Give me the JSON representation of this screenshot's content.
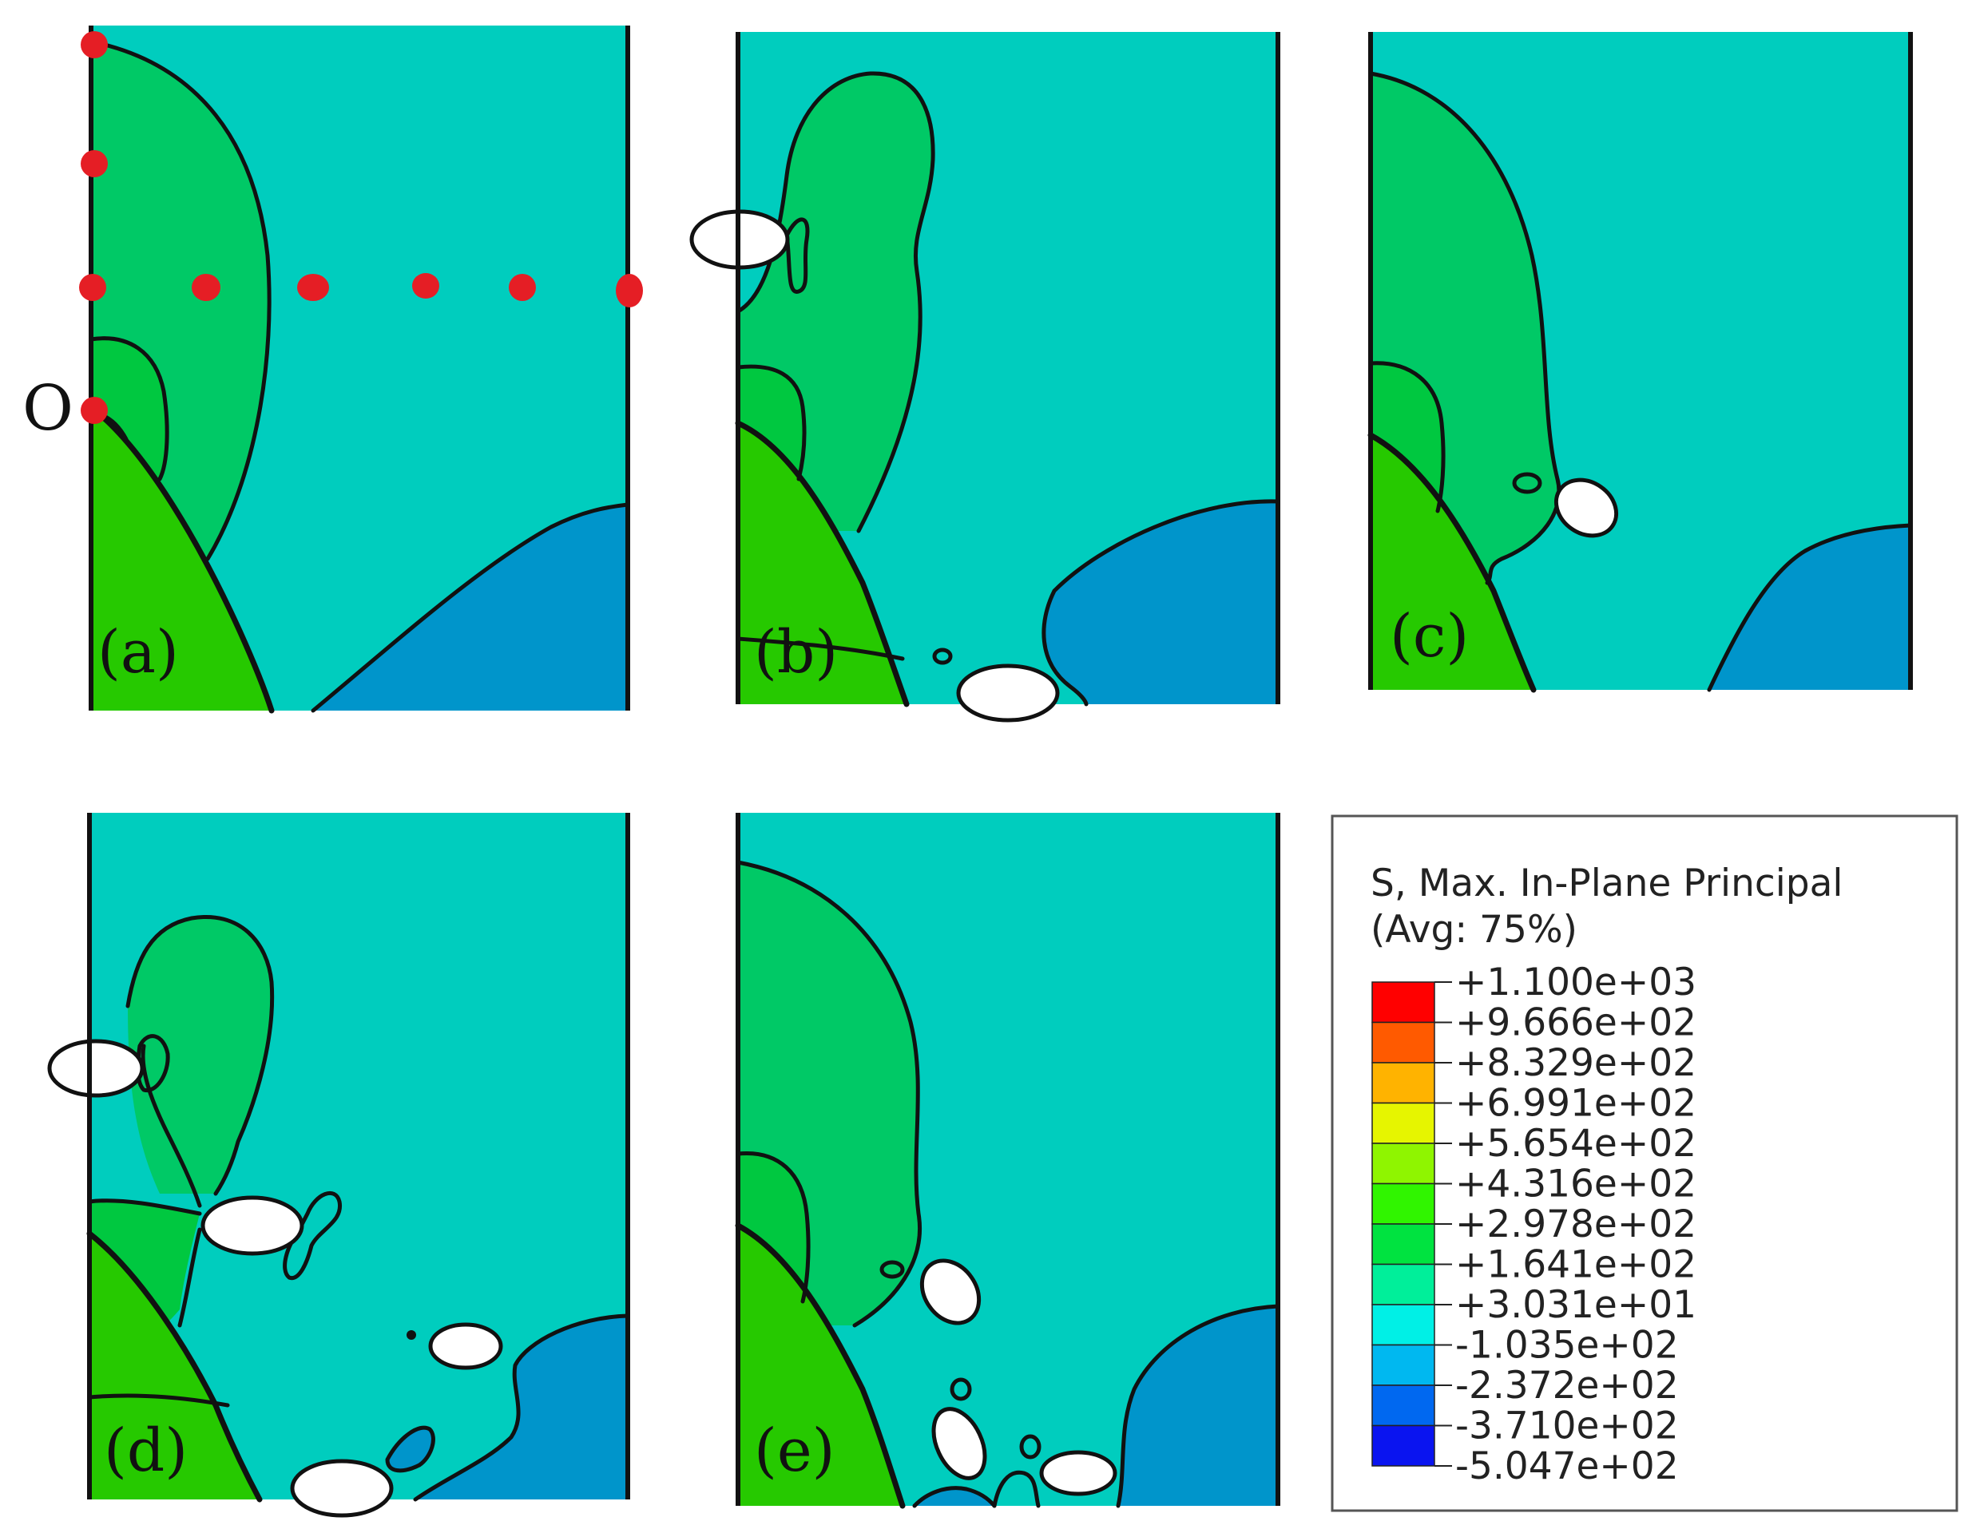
{
  "panels": [
    {
      "id": "a",
      "label": "(a)"
    },
    {
      "id": "b",
      "label": "(b)"
    },
    {
      "id": "c",
      "label": "(c)"
    },
    {
      "id": "d",
      "label": "(d)"
    },
    {
      "id": "e",
      "label": "(e)"
    }
  ],
  "origin_label": "O",
  "colors": {
    "background_field": "#00CDBE",
    "light_green": "#00C966",
    "mid_green": "#00C840",
    "bright_green": "#26C900",
    "blue_region": "#0095CB",
    "marker": "#E51E25"
  },
  "legend": {
    "title_line1": "S, Max. In-Plane Principal",
    "title_line2": "(Avg: 75%)",
    "values": [
      "+1.100e+03",
      "+9.666e+02",
      "+8.329e+02",
      "+6.991e+02",
      "+5.654e+02",
      "+4.316e+02",
      "+2.978e+02",
      "+1.641e+02",
      "+3.031e+01",
      "-1.035e+02",
      "-2.372e+02",
      "-3.710e+02",
      "-5.047e+02"
    ],
    "band_colors": [
      "#FF0000",
      "#FF5A00",
      "#FFB300",
      "#E6F500",
      "#8FF500",
      "#30F500",
      "#00E340",
      "#00EF9A",
      "#00F0E6",
      "#00B8F0",
      "#0068F0",
      "#0A14F0"
    ]
  }
}
